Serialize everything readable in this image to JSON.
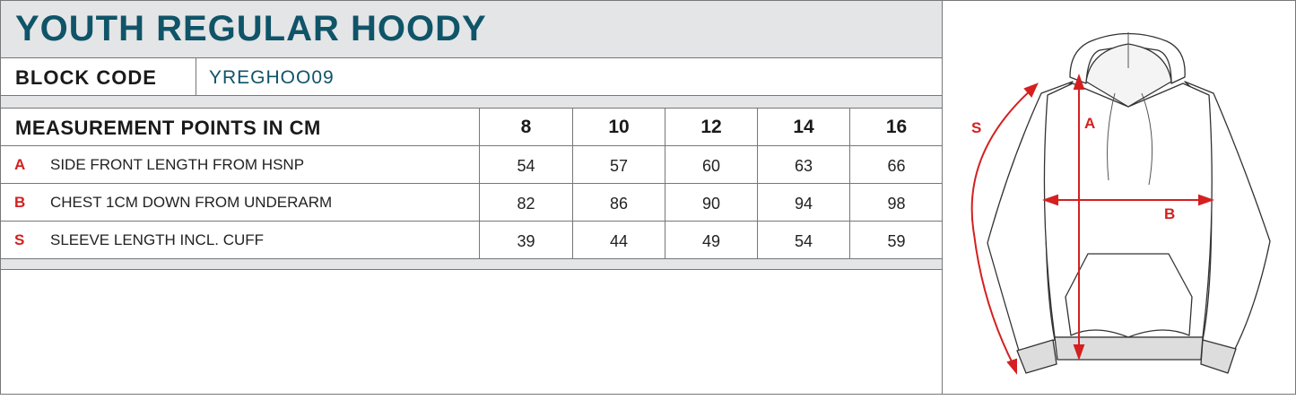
{
  "title": "YOUTH REGULAR HOODY",
  "block_code": {
    "label": "BLOCK CODE",
    "value": "YREGHOO09"
  },
  "table": {
    "header": "MEASUREMENT POINTS IN CM",
    "sizes": [
      "8",
      "10",
      "12",
      "14",
      "16"
    ],
    "rows": [
      {
        "code": "A",
        "label": "SIDE FRONT LENGTH FROM HSNP",
        "values": [
          "54",
          "57",
          "60",
          "63",
          "66"
        ]
      },
      {
        "code": "B",
        "label": "CHEST 1CM DOWN FROM UNDERARM",
        "values": [
          "82",
          "86",
          "90",
          "94",
          "98"
        ]
      },
      {
        "code": "S",
        "label": "SLEEVE LENGTH INCL. CUFF",
        "values": [
          "39",
          "44",
          "49",
          "54",
          "59"
        ]
      }
    ]
  },
  "diagram": {
    "labels": {
      "a": "A",
      "b": "B",
      "s": "S"
    },
    "accent_color": "#d42020",
    "title_color": "#0f5468"
  }
}
